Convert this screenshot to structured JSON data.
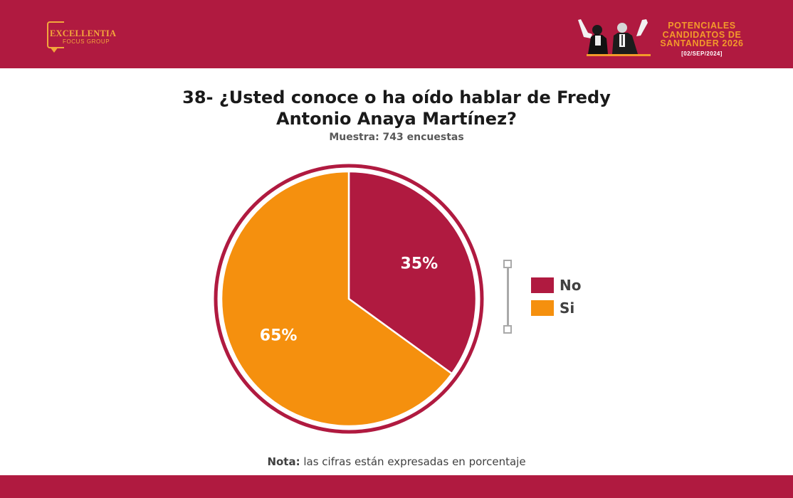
{
  "header": {
    "logo_name": "EXCELLENTIA",
    "logo_sub": "FOCUS GROUP",
    "campaign_lines": [
      "POTENCIALES",
      "CANDIDATOS DE",
      "SANTANDER 2026"
    ],
    "campaign_date": "[02/SEP/2024]"
  },
  "colors": {
    "brand_band": "#b01a40",
    "accent_orange": "#f5900e",
    "no_slice": "#b01a40",
    "si_slice": "#f5900e"
  },
  "footer": {
    "note_bold": "Nota:",
    "note_text": " las cifras están expresadas en porcentaje"
  },
  "chart_data": {
    "type": "pie",
    "title": "38- ¿Usted conoce o ha oído hablar de Fredy Antonio Anaya Martínez?",
    "subtitle": "Muestra: 743 encuestas",
    "categories": [
      "No",
      "Si"
    ],
    "values": [
      35,
      65
    ],
    "data_labels": [
      "35%",
      "65%"
    ],
    "colors": [
      "#b01a40",
      "#f5900e"
    ],
    "legend": {
      "placement": "right",
      "entries": [
        "No",
        "Si"
      ]
    }
  }
}
